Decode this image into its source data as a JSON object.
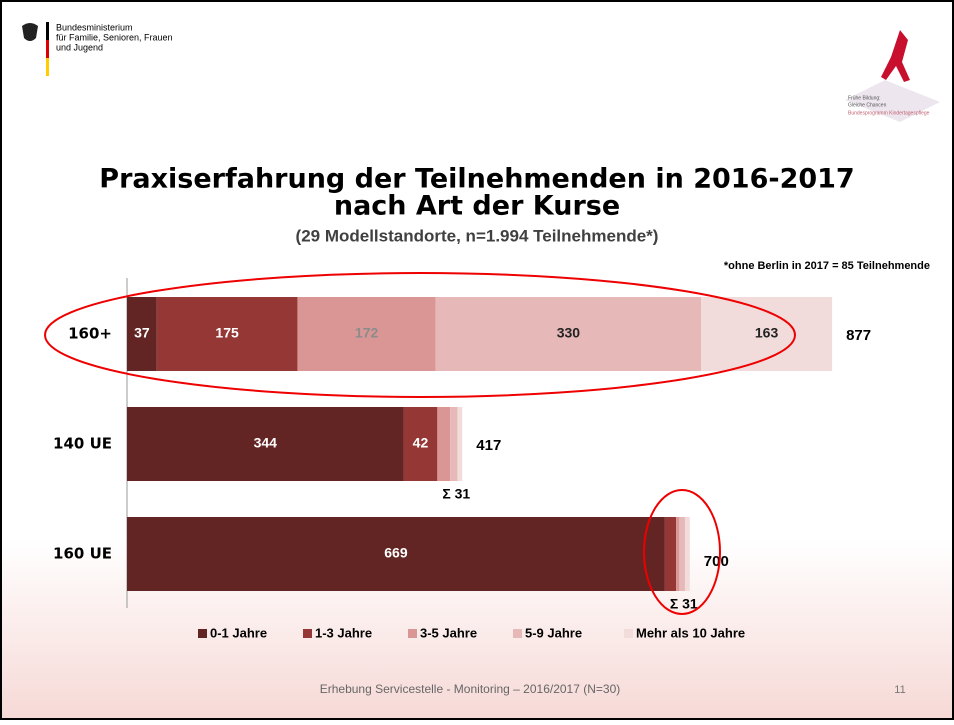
{
  "header": {
    "ministry": [
      "Bundesministerium",
      "für Familie, Senioren, Frauen",
      "und Jugend"
    ],
    "logo": [
      "Frühe Bildung:",
      "Gleiche Chancen",
      "Bundesprogramm Kindertagespflege"
    ]
  },
  "chart_data": {
    "type": "bar",
    "orientation": "horizontal",
    "stacked": true,
    "title": [
      "Praxiserfahrung der Teilnehmenden in 2016-2017",
      "nach Art der Kurse"
    ],
    "subtitle": "(29 Modellstandorte, n=1.994 Teilnehmende*)",
    "note": "*ohne Berlin in 2017 = 85 Teilnehmende",
    "categories": [
      "160+",
      "140 UE",
      "160 UE"
    ],
    "xlim": [
      0,
      1000
    ],
    "series": [
      {
        "name": "0-1 Jahre",
        "color": "#632523",
        "label_color": "#ffffff",
        "values": [
          37,
          344,
          669
        ]
      },
      {
        "name": "1-3 Jahre",
        "color": "#953735",
        "label_color": "#ffffff",
        "values": [
          175,
          42,
          14
        ]
      },
      {
        "name": "3-5 Jahre",
        "color": "#d99694",
        "label_color": "#8c8c8c",
        "values": [
          172,
          16,
          4
        ]
      },
      {
        "name": "5-9 Jahre",
        "color": "#e6b9b8",
        "label_color": "#222222",
        "values": [
          330,
          9,
          7
        ]
      },
      {
        "name": "Mehr als 10 Jahre",
        "color": "#f2dcdb",
        "label_color": "#222222",
        "values": [
          163,
          6,
          6
        ]
      }
    ],
    "totals": [
      877,
      417,
      700
    ],
    "annotations": [
      {
        "text": "Σ 31",
        "category": 1
      },
      {
        "text": "Σ 31",
        "category": 2
      }
    ]
  },
  "footer": "Erhebung Servicestelle - Monitoring – 2016/2017 (N=30)",
  "page_number": "11"
}
